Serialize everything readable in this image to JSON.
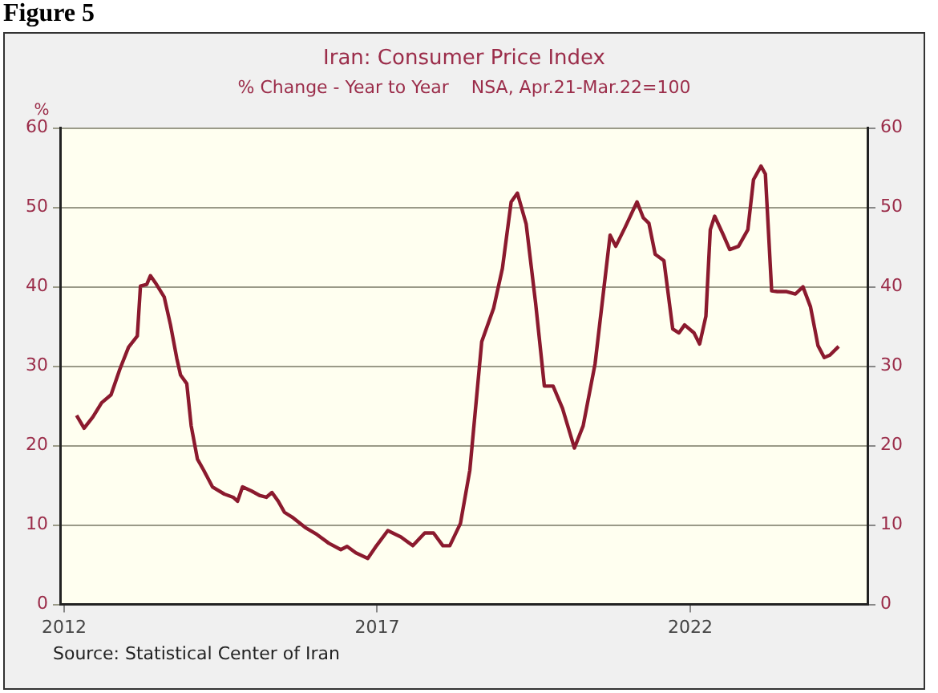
{
  "chart_data": {
    "type": "line",
    "title": "Iran: Consumer Price Index",
    "subtitle": "% Change - Year to Year    NSA, Apr.21-Mar.22=100",
    "ylabel": "%",
    "annotations": [
      "Figure 5",
      "Source:  Statistical Center of Iran"
    ],
    "xlim": [
      2011.95,
      2024.83
    ],
    "xticks": [
      2012,
      2017,
      2022
    ],
    "ylim": [
      0,
      60
    ],
    "yticks": [
      0,
      10,
      20,
      30,
      40,
      50,
      60
    ],
    "y2lim": [
      0,
      60
    ],
    "y2ticks": [
      0,
      10,
      20,
      30,
      40,
      50,
      60
    ],
    "grid": "y",
    "legend": false,
    "marker": "none",
    "line_style": "solid",
    "series": [
      {
        "color": "#8b1a2e",
        "x": [
          2012.2,
          2012.32,
          2012.46,
          2012.6,
          2012.75,
          2012.89,
          2013.03,
          2013.17,
          2013.22,
          2013.32,
          2013.38,
          2013.46,
          2013.6,
          2013.7,
          2013.8,
          2013.86,
          2013.96,
          2014.03,
          2014.13,
          2014.23,
          2014.37,
          2014.56,
          2014.7,
          2014.77,
          2014.85,
          2014.99,
          2015.13,
          2015.23,
          2015.32,
          2015.42,
          2015.52,
          2015.66,
          2015.85,
          2016.04,
          2016.23,
          2016.42,
          2016.52,
          2016.66,
          2016.85,
          2016.99,
          2017.17,
          2017.38,
          2017.57,
          2017.76,
          2017.9,
          2018.05,
          2018.16,
          2018.33,
          2018.48,
          2018.67,
          2018.86,
          2019.0,
          2019.14,
          2019.24,
          2019.38,
          2019.53,
          2019.67,
          2019.81,
          2019.96,
          2020.15,
          2020.29,
          2020.48,
          2020.72,
          2020.81,
          2020.96,
          2021.15,
          2021.25,
          2021.34,
          2021.44,
          2021.58,
          2021.72,
          2021.82,
          2021.91,
          2022.06,
          2022.15,
          2022.25,
          2022.32,
          2022.39,
          2022.53,
          2022.63,
          2022.77,
          2022.92,
          2023.01,
          2023.13,
          2023.2,
          2023.3,
          2023.39,
          2023.54,
          2023.68,
          2023.8,
          2023.92,
          2024.04,
          2024.14,
          2024.23,
          2024.37
        ],
        "values": [
          23.8,
          22.2,
          23.6,
          25.4,
          26.4,
          29.6,
          32.4,
          33.8,
          40.1,
          40.3,
          41.4,
          40.5,
          38.7,
          35.2,
          31.0,
          28.9,
          27.8,
          22.5,
          18.3,
          16.9,
          14.8,
          13.9,
          13.5,
          13.0,
          14.8,
          14.3,
          13.7,
          13.5,
          14.1,
          13.0,
          11.6,
          10.9,
          9.7,
          8.8,
          7.7,
          6.9,
          7.3,
          6.5,
          5.8,
          7.4,
          9.3,
          8.5,
          7.4,
          9.0,
          9.0,
          7.4,
          7.4,
          10.2,
          16.9,
          33.1,
          37.3,
          42.3,
          50.7,
          51.8,
          47.9,
          38.0,
          27.5,
          27.5,
          24.7,
          19.7,
          22.5,
          30.3,
          46.5,
          45.1,
          47.5,
          50.7,
          48.7,
          48.0,
          44.1,
          43.3,
          34.7,
          34.2,
          35.2,
          34.2,
          32.8,
          36.3,
          47.2,
          48.9,
          46.5,
          44.7,
          45.1,
          47.2,
          53.5,
          55.2,
          54.2,
          39.5,
          39.4,
          39.4,
          39.1,
          40.0,
          37.5,
          32.6,
          31.1,
          31.4,
          32.5
        ]
      }
    ]
  }
}
